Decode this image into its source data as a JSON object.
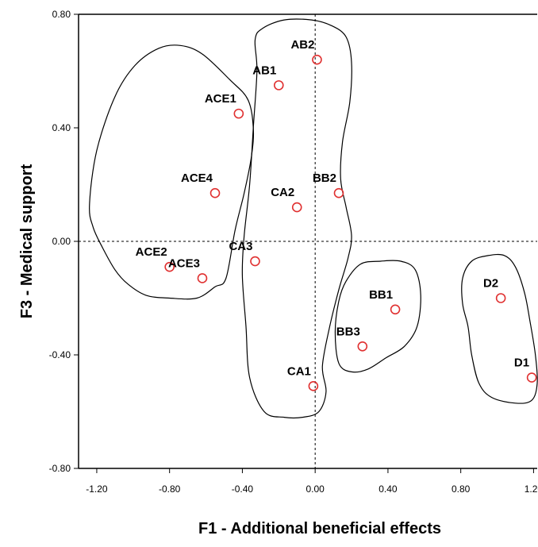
{
  "chart_data": {
    "type": "scatter",
    "xlabel": "F1 - Additional beneficial effects",
    "ylabel": "F3 - Medical support",
    "xlim": [
      -1.3,
      1.22
    ],
    "ylim": [
      -0.8,
      0.8
    ],
    "xticks": [
      -1.2,
      -0.8,
      -0.4,
      0.0,
      0.4,
      0.8,
      1.2
    ],
    "yticks": [
      -0.8,
      -0.4,
      0.0,
      0.4,
      0.8
    ],
    "xtick_labels": [
      "-1.20",
      "-0.80",
      "-0.40",
      "0.00",
      "0.40",
      "0.80",
      "1.20"
    ],
    "ytick_labels": [
      "-0.80",
      "-0.40",
      "0.00",
      "0.40",
      "0.80"
    ],
    "reference_lines": {
      "x": 0.0,
      "y": 0.0,
      "style": "dashed"
    },
    "grid": false,
    "marker_color": "#e03030",
    "points": [
      {
        "label": "AB2",
        "x": 0.01,
        "y": 0.64
      },
      {
        "label": "AB1",
        "x": -0.2,
        "y": 0.55
      },
      {
        "label": "ACE1",
        "x": -0.42,
        "y": 0.45
      },
      {
        "label": "ACE4",
        "x": -0.55,
        "y": 0.17
      },
      {
        "label": "CA2",
        "x": -0.1,
        "y": 0.12
      },
      {
        "label": "BB2",
        "x": 0.13,
        "y": 0.17
      },
      {
        "label": "ACE2",
        "x": -0.8,
        "y": -0.09
      },
      {
        "label": "ACE3",
        "x": -0.62,
        "y": -0.13
      },
      {
        "label": "CA3",
        "x": -0.33,
        "y": -0.07
      },
      {
        "label": "BB1",
        "x": 0.44,
        "y": -0.24
      },
      {
        "label": "BB3",
        "x": 0.26,
        "y": -0.37
      },
      {
        "label": "CA1",
        "x": -0.01,
        "y": -0.51
      },
      {
        "label": "D2",
        "x": 1.02,
        "y": -0.2
      },
      {
        "label": "D1",
        "x": 1.19,
        "y": -0.48
      }
    ],
    "cluster_outlines": [
      {
        "members": [
          "ACE1",
          "ACE4",
          "ACE2",
          "ACE3"
        ],
        "path": [
          [
            -1.24,
            0.13
          ],
          [
            -1.2,
            0.32
          ],
          [
            -1.1,
            0.51
          ],
          [
            -0.99,
            0.62
          ],
          [
            -0.86,
            0.68
          ],
          [
            -0.74,
            0.69
          ],
          [
            -0.62,
            0.66
          ],
          [
            -0.47,
            0.57
          ],
          [
            -0.37,
            0.5
          ],
          [
            -0.34,
            0.4
          ],
          [
            -0.35,
            0.3
          ],
          [
            -0.39,
            0.17
          ],
          [
            -0.44,
            0.04
          ],
          [
            -0.49,
            -0.13
          ],
          [
            -0.55,
            -0.16
          ],
          [
            -0.65,
            -0.2
          ],
          [
            -0.8,
            -0.2
          ],
          [
            -0.93,
            -0.19
          ],
          [
            -1.03,
            -0.15
          ],
          [
            -1.1,
            -0.1
          ],
          [
            -1.17,
            -0.02
          ],
          [
            -1.22,
            0.05
          ]
        ]
      },
      {
        "members": [
          "AB1",
          "AB2",
          "CA2",
          "BB2",
          "CA3",
          "CA1"
        ],
        "path": [
          [
            -0.33,
            0.71
          ],
          [
            -0.29,
            0.75
          ],
          [
            -0.17,
            0.78
          ],
          [
            -0.02,
            0.78
          ],
          [
            0.09,
            0.76
          ],
          [
            0.17,
            0.72
          ],
          [
            0.2,
            0.63
          ],
          [
            0.19,
            0.49
          ],
          [
            0.15,
            0.35
          ],
          [
            0.14,
            0.22
          ],
          [
            0.17,
            0.12
          ],
          [
            0.2,
            0.02
          ],
          [
            0.18,
            -0.06
          ],
          [
            0.13,
            -0.17
          ],
          [
            0.08,
            -0.3
          ],
          [
            0.04,
            -0.44
          ],
          [
            0.06,
            -0.53
          ],
          [
            0.02,
            -0.6
          ],
          [
            -0.07,
            -0.62
          ],
          [
            -0.17,
            -0.62
          ],
          [
            -0.28,
            -0.6
          ],
          [
            -0.36,
            -0.48
          ],
          [
            -0.38,
            -0.3
          ],
          [
            -0.4,
            -0.12
          ],
          [
            -0.39,
            0.02
          ],
          [
            -0.36,
            0.2
          ],
          [
            -0.34,
            0.4
          ],
          [
            -0.32,
            0.6
          ]
        ]
      },
      {
        "members": [
          "BB1",
          "BB3"
        ],
        "path": [
          [
            0.17,
            -0.14
          ],
          [
            0.25,
            -0.08
          ],
          [
            0.36,
            -0.07
          ],
          [
            0.47,
            -0.07
          ],
          [
            0.55,
            -0.1
          ],
          [
            0.58,
            -0.19
          ],
          [
            0.56,
            -0.3
          ],
          [
            0.49,
            -0.37
          ],
          [
            0.39,
            -0.41
          ],
          [
            0.29,
            -0.45
          ],
          [
            0.2,
            -0.46
          ],
          [
            0.13,
            -0.43
          ],
          [
            0.11,
            -0.32
          ],
          [
            0.13,
            -0.21
          ]
        ]
      },
      {
        "members": [
          "D2",
          "D1"
        ],
        "path": [
          [
            0.81,
            -0.13
          ],
          [
            0.86,
            -0.07
          ],
          [
            0.95,
            -0.05
          ],
          [
            1.04,
            -0.05
          ],
          [
            1.1,
            -0.09
          ],
          [
            1.15,
            -0.18
          ],
          [
            1.18,
            -0.28
          ],
          [
            1.21,
            -0.4
          ],
          [
            1.22,
            -0.5
          ],
          [
            1.19,
            -0.56
          ],
          [
            1.1,
            -0.57
          ],
          [
            0.97,
            -0.55
          ],
          [
            0.9,
            -0.5
          ],
          [
            0.86,
            -0.4
          ],
          [
            0.84,
            -0.3
          ],
          [
            0.81,
            -0.22
          ]
        ]
      }
    ]
  }
}
